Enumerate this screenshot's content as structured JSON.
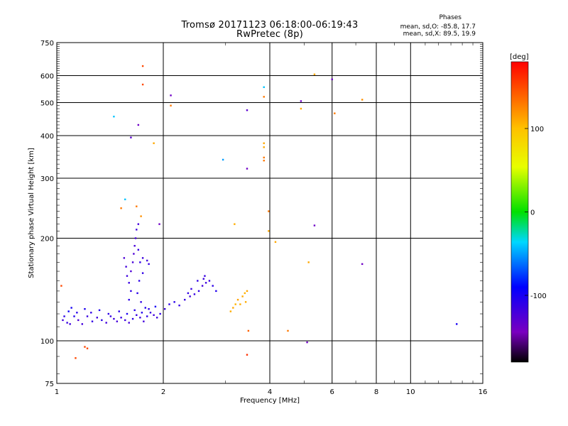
{
  "chart_data": {
    "type": "scatter",
    "title": "Tromsø 20171123 06:18:00-06:19:43",
    "subtitle": "RwPretec (8p)",
    "xlabel": "Frequency [MHz]",
    "ylabel": "Stationary phase Virtual Height [km]",
    "x_scale": "log",
    "y_scale": "log",
    "xlim": [
      1,
      16
    ],
    "ylim": [
      75,
      750
    ],
    "x_ticks": [
      "1",
      "2",
      "4",
      "6",
      "8",
      "10",
      "16"
    ],
    "y_ticks": [
      "75",
      "100",
      "200",
      "300",
      "400",
      "500",
      "600",
      "750"
    ],
    "grid": true,
    "colorbar": {
      "label": "[deg]",
      "range": [
        -180,
        180
      ],
      "ticks": [
        "100",
        "0",
        "-100"
      ]
    },
    "stats": {
      "header": "Phases",
      "o_mode": "mean, sd,O: -85.8, 17.7",
      "x_mode": "mean, sd,X:  89.5, 19.9"
    },
    "points": [
      [
        1.04,
        115,
        -120
      ],
      [
        1.05,
        118,
        -110
      ],
      [
        1.07,
        113,
        -115
      ],
      [
        1.09,
        112,
        -118
      ],
      [
        1.12,
        118,
        -105
      ],
      [
        1.15,
        115,
        -125
      ],
      [
        1.18,
        112,
        -120
      ],
      [
        1.22,
        118,
        -115
      ],
      [
        1.26,
        114,
        -112
      ],
      [
        1.3,
        117,
        -118
      ],
      [
        1.34,
        115,
        -110
      ],
      [
        1.38,
        113,
        -120
      ],
      [
        1.42,
        118,
        -115
      ],
      [
        1.45,
        116,
        -118
      ],
      [
        1.48,
        114,
        -122
      ],
      [
        1.52,
        117,
        -115
      ],
      [
        1.56,
        115,
        -118
      ],
      [
        1.6,
        113,
        -120
      ],
      [
        1.64,
        116,
        -112
      ],
      [
        1.68,
        119,
        -115
      ],
      [
        1.72,
        117,
        -118
      ],
      [
        1.76,
        114,
        -120
      ],
      [
        1.8,
        118,
        -110
      ],
      [
        1.84,
        121,
        -115
      ],
      [
        1.88,
        119,
        -120
      ],
      [
        1.92,
        117,
        -118
      ],
      [
        1.96,
        120,
        -112
      ],
      [
        2.02,
        124,
        -115
      ],
      [
        2.08,
        128,
        -110
      ],
      [
        2.15,
        130,
        -108
      ],
      [
        2.22,
        127,
        -112
      ],
      [
        2.3,
        132,
        -115
      ],
      [
        2.38,
        135,
        -118
      ],
      [
        2.45,
        137,
        -115
      ],
      [
        2.52,
        140,
        -112
      ],
      [
        2.58,
        145,
        -120
      ],
      [
        2.64,
        148,
        -118
      ],
      [
        2.7,
        150,
        -115
      ],
      [
        2.76,
        145,
        -110
      ],
      [
        2.82,
        140,
        -105
      ],
      [
        1.08,
        122,
        -95
      ],
      [
        1.1,
        125,
        -100
      ],
      [
        1.14,
        121,
        -108
      ],
      [
        1.2,
        124,
        -102
      ],
      [
        1.25,
        121,
        -112
      ],
      [
        1.32,
        123,
        -105
      ],
      [
        1.4,
        120,
        -110
      ],
      [
        1.5,
        122,
        -108
      ],
      [
        1.58,
        120,
        -102
      ],
      [
        1.66,
        123,
        -108
      ],
      [
        1.74,
        121,
        -105
      ],
      [
        1.82,
        124,
        -110
      ],
      [
        1.9,
        126,
        -100
      ],
      [
        1.55,
        175,
        -125
      ],
      [
        1.57,
        165,
        -120
      ],
      [
        1.58,
        155,
        -118
      ],
      [
        1.6,
        148,
        -115
      ],
      [
        1.62,
        160,
        -125
      ],
      [
        1.64,
        170,
        -122
      ],
      [
        1.65,
        180,
        -125
      ],
      [
        1.66,
        190,
        -122
      ],
      [
        1.67,
        200,
        -120
      ],
      [
        1.68,
        212,
        -118
      ],
      [
        1.7,
        220,
        -120
      ],
      [
        1.62,
        140,
        -112
      ],
      [
        1.6,
        132,
        -110
      ],
      [
        1.7,
        185,
        -115
      ],
      [
        1.72,
        170,
        -112
      ],
      [
        1.75,
        175,
        -118
      ],
      [
        1.8,
        172,
        -120
      ],
      [
        1.82,
        168,
        -115
      ],
      [
        1.75,
        158,
        -112
      ],
      [
        1.71,
        150,
        -110
      ],
      [
        1.69,
        138,
        -108
      ],
      [
        1.73,
        130,
        -112
      ],
      [
        1.78,
        125,
        -105
      ],
      [
        2.6,
        152,
        -118
      ],
      [
        2.62,
        155,
        -115
      ],
      [
        2.5,
        150,
        -112
      ],
      [
        2.4,
        142,
        -115
      ],
      [
        2.35,
        138,
        -112
      ],
      [
        3.15,
        125,
        110
      ],
      [
        3.2,
        128,
        105
      ],
      [
        3.25,
        132,
        112
      ],
      [
        3.3,
        128,
        108
      ],
      [
        3.35,
        135,
        110
      ],
      [
        3.4,
        138,
        105
      ],
      [
        3.45,
        140,
        112
      ],
      [
        3.42,
        130,
        108
      ],
      [
        3.1,
        122,
        108
      ],
      [
        3.18,
        220,
        108
      ],
      [
        1.62,
        395,
        -130
      ],
      [
        1.7,
        430,
        -140
      ],
      [
        1.75,
        640,
        150
      ],
      [
        1.75,
        565,
        150
      ],
      [
        2.1,
        525,
        -140
      ],
      [
        2.1,
        490,
        130
      ],
      [
        1.56,
        260,
        -40
      ],
      [
        1.52,
        245,
        130
      ],
      [
        1.45,
        455,
        -40
      ],
      [
        1.68,
        248,
        130
      ],
      [
        1.73,
        232,
        120
      ],
      [
        1.95,
        220,
        -140
      ],
      [
        1.88,
        380,
        110
      ],
      [
        2.95,
        340,
        -50
      ],
      [
        3.45,
        475,
        -130
      ],
      [
        3.45,
        320,
        -140
      ],
      [
        3.85,
        555,
        -40
      ],
      [
        3.85,
        520,
        130
      ],
      [
        3.85,
        380,
        110
      ],
      [
        3.85,
        370,
        110
      ],
      [
        3.85,
        345,
        130
      ],
      [
        3.85,
        338,
        130
      ],
      [
        3.97,
        210,
        110
      ],
      [
        3.97,
        240,
        130
      ],
      [
        4.15,
        195,
        110
      ],
      [
        4.9,
        505,
        -140
      ],
      [
        4.9,
        480,
        110
      ],
      [
        5.15,
        170,
        110
      ],
      [
        5.35,
        218,
        -140
      ],
      [
        5.35,
        605,
        110
      ],
      [
        5.1,
        99,
        -140
      ],
      [
        4.5,
        107,
        130
      ],
      [
        6.0,
        585,
        -140
      ],
      [
        6.1,
        465,
        130
      ],
      [
        7.3,
        168,
        -140
      ],
      [
        7.3,
        510,
        120
      ],
      [
        13.5,
        112,
        -100
      ],
      [
        1.03,
        145,
        150
      ],
      [
        1.2,
        96,
        150
      ],
      [
        1.22,
        95,
        150
      ],
      [
        1.13,
        89,
        150
      ],
      [
        3.48,
        107,
        140
      ],
      [
        3.45,
        91,
        160
      ]
    ]
  }
}
